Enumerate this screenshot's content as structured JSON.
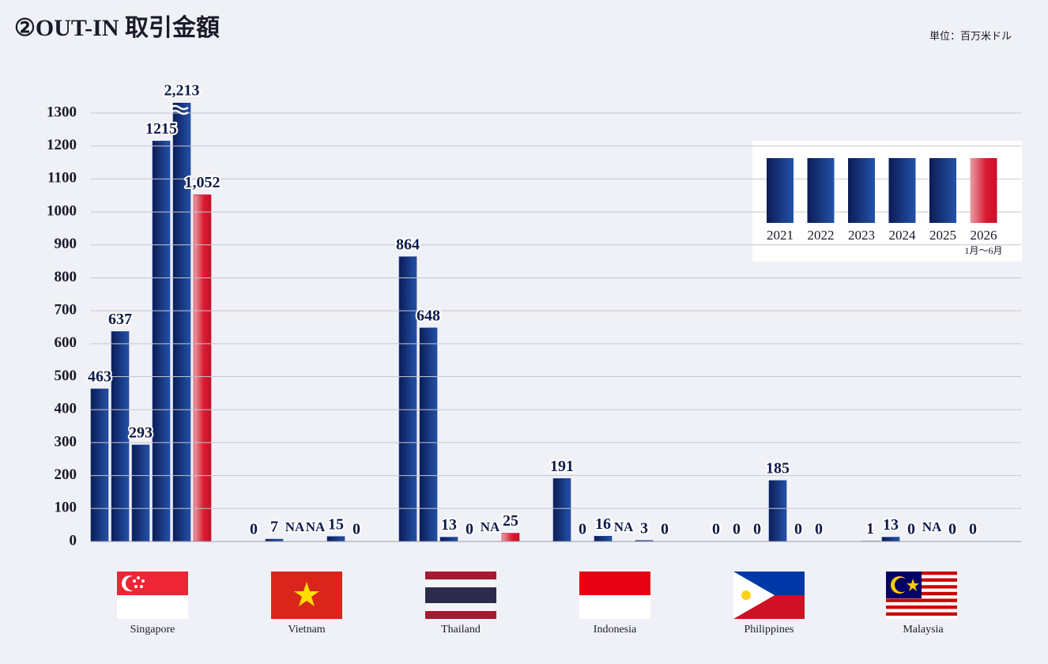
{
  "chart_data": {
    "type": "bar",
    "title": "②OUT-IN 取引金額",
    "unit": "単位：百万米ドル",
    "categories": [
      "Singapore",
      "Vietnam",
      "Thailand",
      "Indonesia",
      "Philippines",
      "Malaysia"
    ],
    "series": [
      {
        "name": "2021",
        "color": "#1a3a8a",
        "values": [
          463,
          0,
          864,
          191,
          0,
          1
        ],
        "value_labels": [
          "463",
          "0",
          "864",
          "191",
          "0",
          "1"
        ]
      },
      {
        "name": "2022",
        "color": "#1a3a8a",
        "values": [
          637,
          7,
          648,
          0,
          0,
          13
        ],
        "value_labels": [
          "637",
          "7",
          "648",
          "0",
          "0",
          "13"
        ]
      },
      {
        "name": "2023",
        "color": "#1a3a8a",
        "values": [
          293,
          null,
          13,
          16,
          0,
          0
        ],
        "value_labels": [
          "293",
          "NA",
          "13",
          "16",
          "0",
          "0"
        ]
      },
      {
        "name": "2024",
        "color": "#1a3a8a",
        "values": [
          1215,
          null,
          0,
          null,
          185,
          null
        ],
        "value_labels": [
          "1215",
          "NA",
          "0",
          "NA",
          "185",
          "NA"
        ]
      },
      {
        "name": "2025",
        "color": "#1a3a8a",
        "values": [
          2213,
          15,
          null,
          3,
          0,
          0
        ],
        "value_labels": [
          "2,213",
          "15",
          "NA",
          "3",
          "0",
          "0"
        ]
      },
      {
        "name": "2026",
        "color": "#d0102a",
        "values": [
          1052,
          0,
          25,
          0,
          0,
          0
        ],
        "value_labels": [
          "1,052",
          "0",
          "25",
          "0",
          "0",
          "0"
        ]
      }
    ],
    "legend_note": "1月～6月",
    "ylim": [
      0,
      1300
    ],
    "yticks": [
      0,
      100,
      200,
      300,
      400,
      500,
      600,
      700,
      800,
      900,
      1000,
      1100,
      1200,
      1300
    ],
    "grid": true
  }
}
